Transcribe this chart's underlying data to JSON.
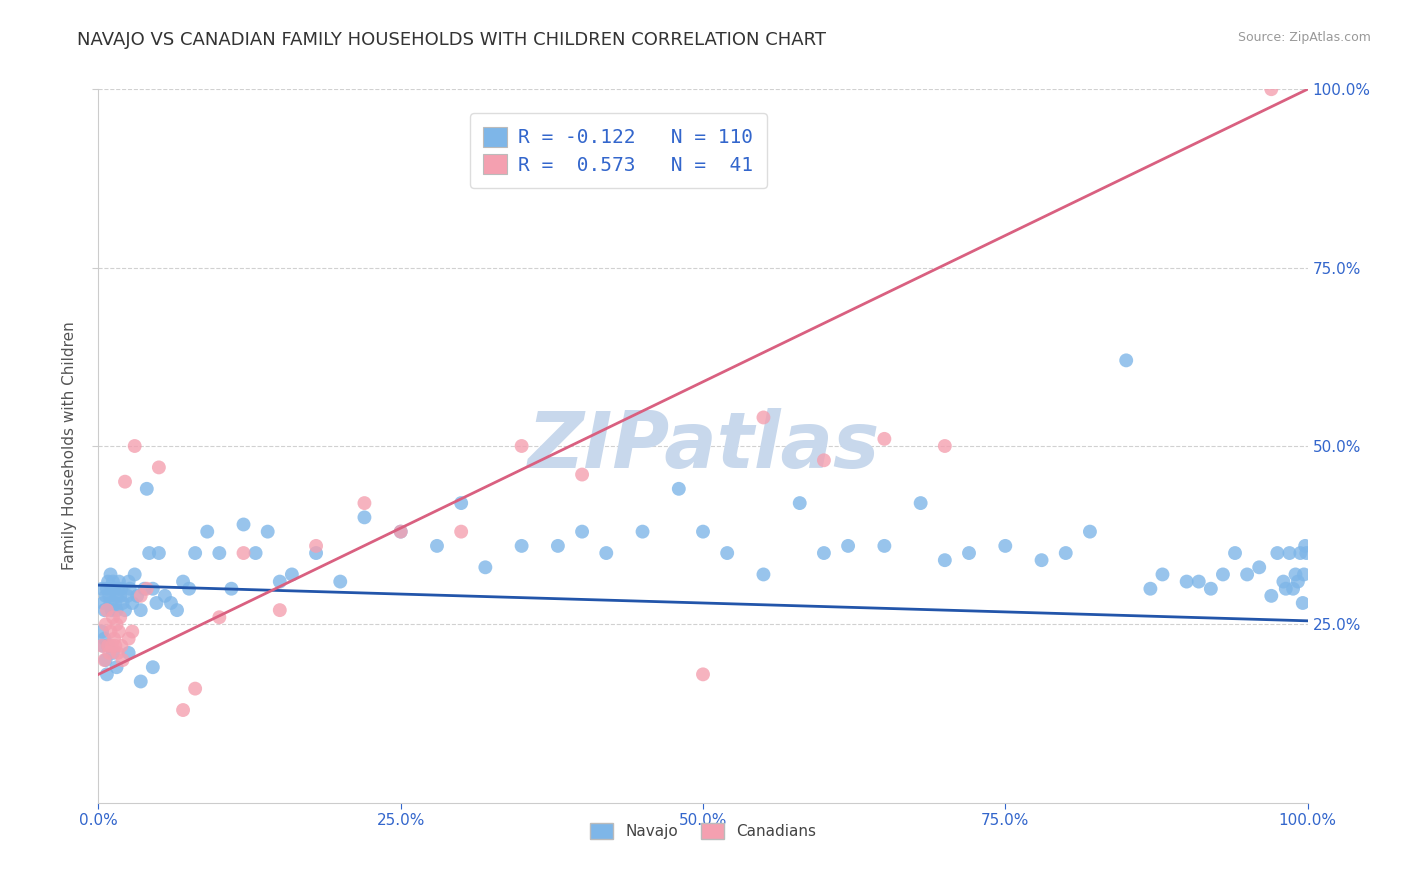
{
  "title": "NAVAJO VS CANADIAN FAMILY HOUSEHOLDS WITH CHILDREN CORRELATION CHART",
  "source": "Source: ZipAtlas.com",
  "ylabel": "Family Households with Children",
  "xlim": [
    0.0,
    1.0
  ],
  "ylim": [
    0.0,
    1.0
  ],
  "xticks": [
    0.0,
    0.25,
    0.5,
    0.75,
    1.0
  ],
  "yticks": [
    0.25,
    0.5,
    0.75,
    1.0
  ],
  "xtick_labels": [
    "0.0%",
    "25.0%",
    "50.0%",
    "75.0%",
    "100.0%"
  ],
  "ytick_labels": [
    "25.0%",
    "50.0%",
    "75.0%",
    "100.0%"
  ],
  "navajo_color": "#7EB6E8",
  "canadian_color": "#F4A0B0",
  "navajo_R": -0.122,
  "navajo_N": 110,
  "canadian_R": 0.573,
  "canadian_N": 41,
  "legend_label_navajo": "Navajo",
  "legend_label_canadian": "Canadians",
  "trend_blue": "#2255AA",
  "trend_pink": "#D96080",
  "watermark": "ZIPatlas",
  "watermark_color": "#C8D8EC",
  "grid_color": "#CCCCCC",
  "background_color": "#FFFFFF",
  "title_fontsize": 13,
  "axis_label_fontsize": 11,
  "tick_fontsize": 11,
  "legend_fontsize": 14,
  "blue_line_x0": 0.0,
  "blue_line_y0": 0.305,
  "blue_line_x1": 1.0,
  "blue_line_y1": 0.255,
  "pink_line_x0": 0.0,
  "pink_line_y0": 0.18,
  "pink_line_x1": 1.0,
  "pink_line_y1": 1.0,
  "navajo_x": [
    0.003,
    0.004,
    0.005,
    0.006,
    0.007,
    0.008,
    0.009,
    0.01,
    0.01,
    0.011,
    0.011,
    0.012,
    0.013,
    0.014,
    0.015,
    0.015,
    0.016,
    0.017,
    0.018,
    0.019,
    0.02,
    0.022,
    0.024,
    0.025,
    0.026,
    0.028,
    0.03,
    0.032,
    0.035,
    0.038,
    0.04,
    0.042,
    0.045,
    0.048,
    0.05,
    0.055,
    0.06,
    0.065,
    0.07,
    0.075,
    0.08,
    0.09,
    0.1,
    0.11,
    0.12,
    0.13,
    0.14,
    0.15,
    0.16,
    0.18,
    0.2,
    0.22,
    0.25,
    0.28,
    0.3,
    0.32,
    0.35,
    0.38,
    0.4,
    0.42,
    0.45,
    0.48,
    0.5,
    0.52,
    0.55,
    0.58,
    0.6,
    0.62,
    0.65,
    0.68,
    0.7,
    0.72,
    0.75,
    0.78,
    0.8,
    0.82,
    0.85,
    0.87,
    0.88,
    0.9,
    0.91,
    0.92,
    0.93,
    0.94,
    0.95,
    0.96,
    0.97,
    0.975,
    0.98,
    0.982,
    0.985,
    0.988,
    0.99,
    0.992,
    0.994,
    0.996,
    0.997,
    0.998,
    0.999,
    0.004,
    0.006,
    0.007,
    0.015,
    0.025,
    0.035,
    0.045,
    0.003,
    0.005,
    0.008,
    0.012
  ],
  "navajo_y": [
    0.3,
    0.28,
    0.27,
    0.29,
    0.3,
    0.31,
    0.29,
    0.28,
    0.32,
    0.3,
    0.27,
    0.31,
    0.3,
    0.28,
    0.27,
    0.29,
    0.3,
    0.31,
    0.29,
    0.3,
    0.28,
    0.27,
    0.29,
    0.31,
    0.3,
    0.28,
    0.32,
    0.29,
    0.27,
    0.3,
    0.44,
    0.35,
    0.3,
    0.28,
    0.35,
    0.29,
    0.28,
    0.27,
    0.31,
    0.3,
    0.35,
    0.38,
    0.35,
    0.3,
    0.39,
    0.35,
    0.38,
    0.31,
    0.32,
    0.35,
    0.31,
    0.4,
    0.38,
    0.36,
    0.42,
    0.33,
    0.36,
    0.36,
    0.38,
    0.35,
    0.38,
    0.44,
    0.38,
    0.35,
    0.32,
    0.42,
    0.35,
    0.36,
    0.36,
    0.42,
    0.34,
    0.35,
    0.36,
    0.34,
    0.35,
    0.38,
    0.62,
    0.3,
    0.32,
    0.31,
    0.31,
    0.3,
    0.32,
    0.35,
    0.32,
    0.33,
    0.29,
    0.35,
    0.31,
    0.3,
    0.35,
    0.3,
    0.32,
    0.31,
    0.35,
    0.28,
    0.32,
    0.36,
    0.35,
    0.22,
    0.2,
    0.18,
    0.19,
    0.21,
    0.17,
    0.19,
    0.24,
    0.23,
    0.22,
    0.21
  ],
  "canadian_x": [
    0.003,
    0.005,
    0.006,
    0.007,
    0.008,
    0.009,
    0.01,
    0.011,
    0.012,
    0.013,
    0.014,
    0.015,
    0.016,
    0.017,
    0.018,
    0.019,
    0.02,
    0.022,
    0.025,
    0.028,
    0.03,
    0.035,
    0.04,
    0.05,
    0.07,
    0.08,
    0.1,
    0.12,
    0.15,
    0.18,
    0.22,
    0.25,
    0.3,
    0.35,
    0.4,
    0.5,
    0.55,
    0.6,
    0.65,
    0.7,
    0.97
  ],
  "canadian_y": [
    0.22,
    0.2,
    0.25,
    0.27,
    0.22,
    0.21,
    0.24,
    0.22,
    0.26,
    0.23,
    0.22,
    0.25,
    0.21,
    0.24,
    0.26,
    0.22,
    0.2,
    0.45,
    0.23,
    0.24,
    0.5,
    0.29,
    0.3,
    0.47,
    0.13,
    0.16,
    0.26,
    0.35,
    0.27,
    0.36,
    0.42,
    0.38,
    0.38,
    0.5,
    0.46,
    0.18,
    0.54,
    0.48,
    0.51,
    0.5,
    1.0
  ]
}
